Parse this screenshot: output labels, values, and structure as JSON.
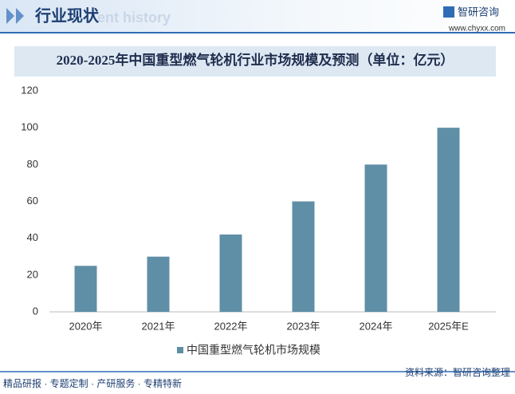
{
  "header": {
    "title": "行业现状",
    "watermark": "ent history",
    "brand": "智研咨询",
    "url": "www.chyxx.com"
  },
  "chart_data": {
    "type": "bar",
    "title": "2020-2025年中国重型燃气轮机行业市场规模及预测（单位：亿元）",
    "categories": [
      "2020年",
      "2021年",
      "2022年",
      "2023年",
      "2024年",
      "2025年E"
    ],
    "series": [
      {
        "name": "中国重型燃气轮机市场规模",
        "color": "#5f8fa6",
        "values": [
          25,
          30,
          42,
          60,
          80,
          100
        ]
      }
    ],
    "ylim": [
      0,
      120
    ],
    "yticks": [
      0,
      20,
      40,
      60,
      80,
      100,
      120
    ],
    "grid": false,
    "legend": "bottom"
  },
  "footer": {
    "left": "精品研报 · 专题定制 · 产研服务 · 专精特新",
    "source": "资料来源：智研咨询整理"
  }
}
